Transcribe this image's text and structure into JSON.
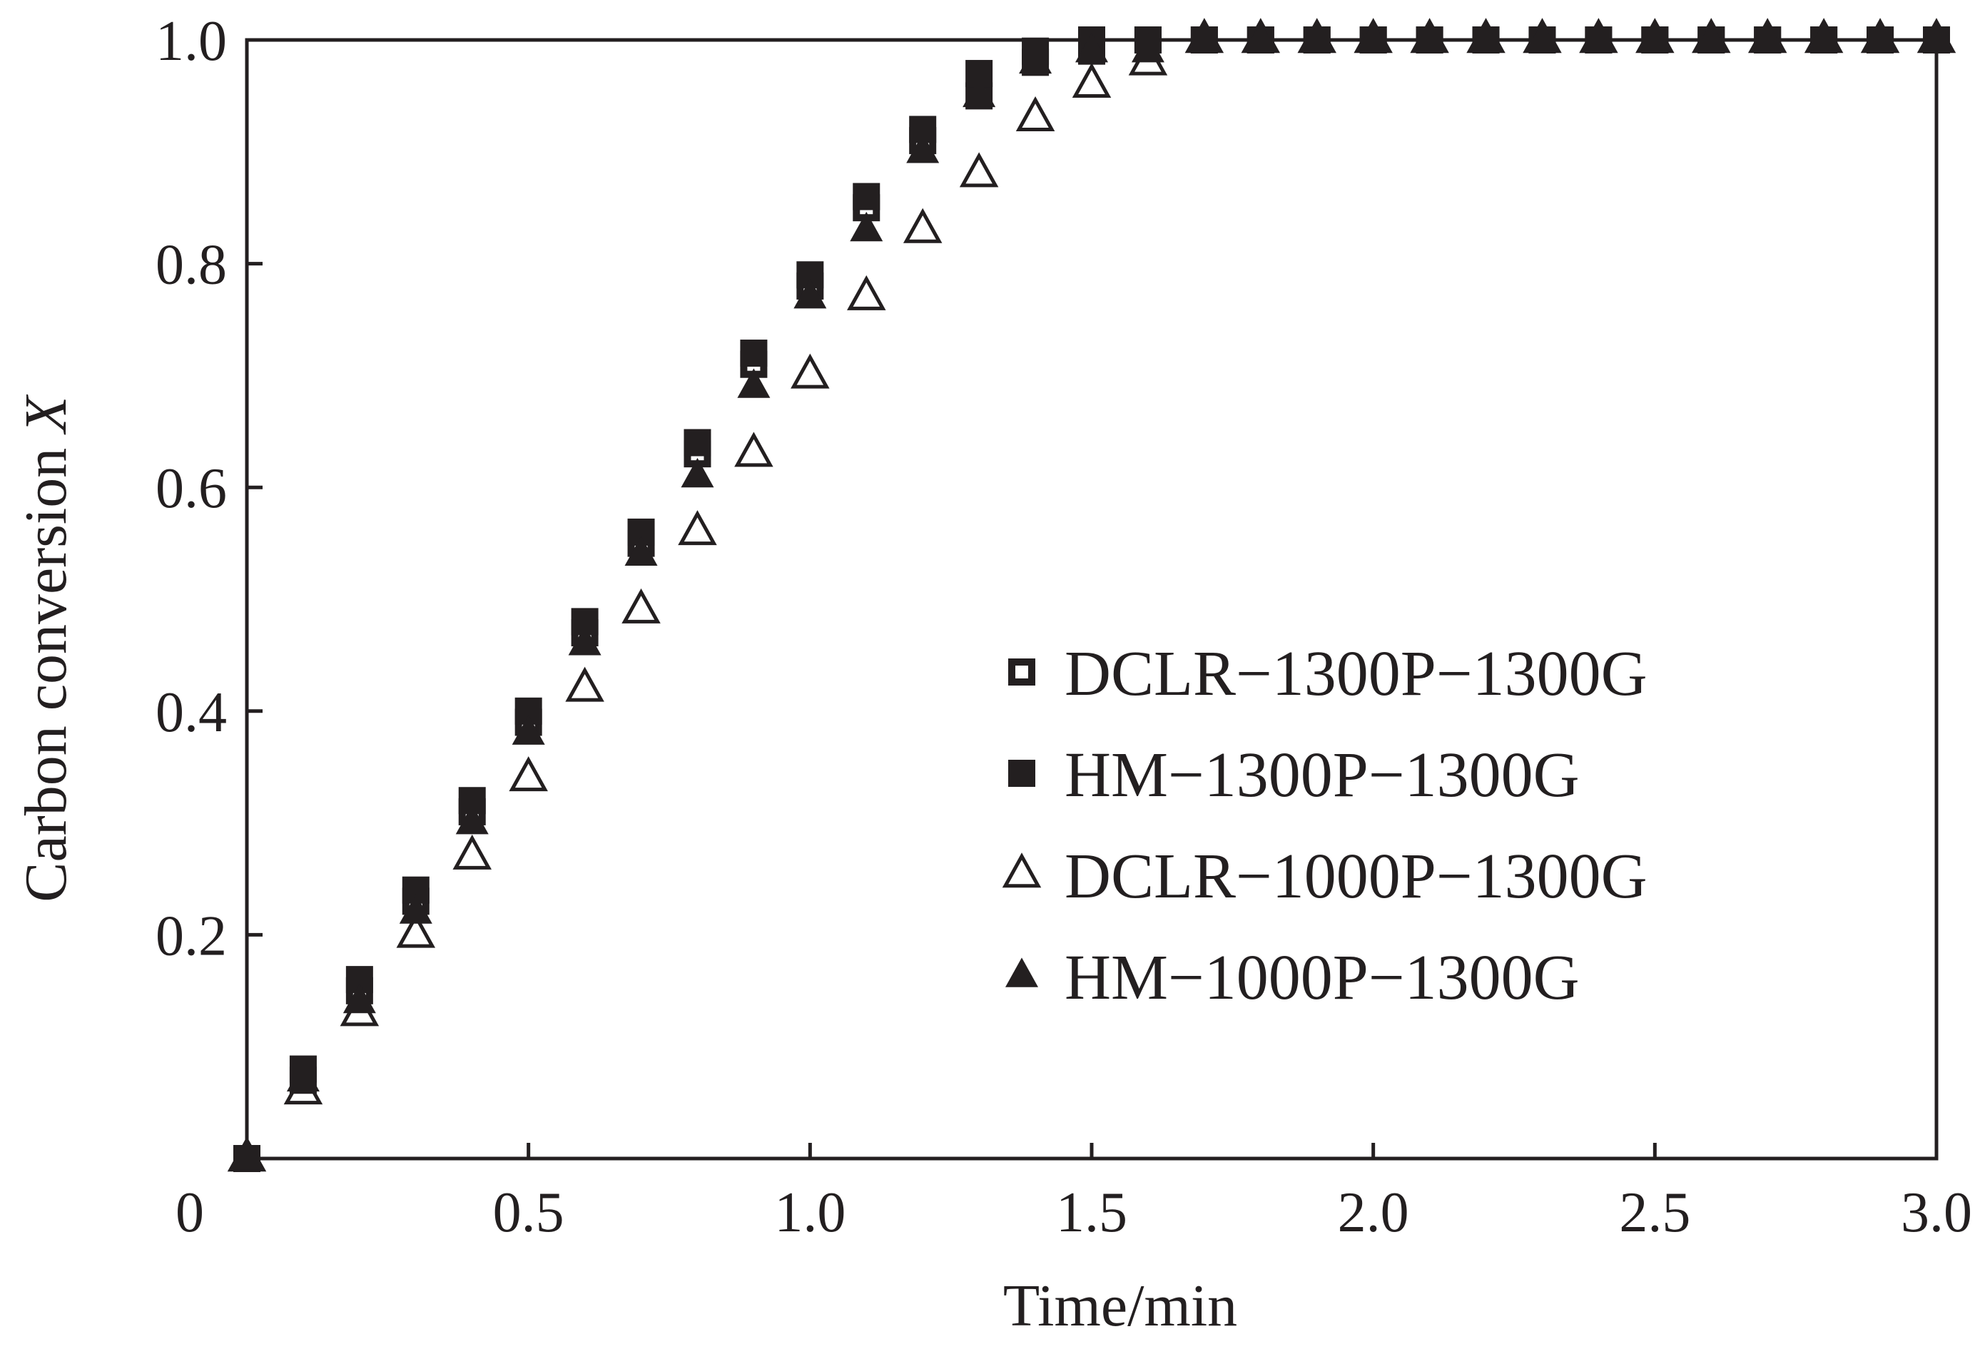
{
  "chart_data": {
    "type": "scatter",
    "title": "",
    "xlabel": "Time/min",
    "ylabel_main": "Carbon conversion ",
    "ylabel_var": "X",
    "xlim": [
      0,
      3.0
    ],
    "ylim": [
      0,
      1.0
    ],
    "x_ticks": [
      {
        "value": 0,
        "label": "0"
      },
      {
        "value": 0.5,
        "label": "0.5"
      },
      {
        "value": 1.0,
        "label": "1.0"
      },
      {
        "value": 1.5,
        "label": "1.5"
      },
      {
        "value": 2.0,
        "label": "2.0"
      },
      {
        "value": 2.5,
        "label": "2.5"
      },
      {
        "value": 3.0,
        "label": "3.0"
      }
    ],
    "y_ticks": [
      {
        "value": 0.2,
        "label": "0.2"
      },
      {
        "value": 0.4,
        "label": "0.4"
      },
      {
        "value": 0.6,
        "label": "0.6"
      },
      {
        "value": 0.8,
        "label": "0.8"
      },
      {
        "value": 1.0,
        "label": "1.0"
      }
    ],
    "grid": false,
    "legend_position": "center-right",
    "series": [
      {
        "name": "DCLR−1300P−1300G",
        "marker": "square-open",
        "color": "#231f20",
        "x": [
          0,
          0.1,
          0.2,
          0.3,
          0.4,
          0.5,
          0.6,
          0.7,
          0.8,
          0.9,
          1.0,
          1.1,
          1.2,
          1.3,
          1.4,
          1.5,
          1.6,
          1.7,
          1.8,
          1.9,
          2.0,
          2.1,
          2.2,
          2.3,
          2.4,
          2.5,
          2.6,
          2.7,
          2.8,
          2.9,
          3.0
        ],
        "y": [
          0,
          0.07,
          0.15,
          0.23,
          0.31,
          0.39,
          0.47,
          0.55,
          0.63,
          0.71,
          0.78,
          0.85,
          0.91,
          0.95,
          0.98,
          0.99,
          1.0,
          1.0,
          1.0,
          1.0,
          1.0,
          1.0,
          1.0,
          1.0,
          1.0,
          1.0,
          1.0,
          1.0,
          1.0,
          1.0,
          1.0
        ]
      },
      {
        "name": "HM−1300P−1300G",
        "marker": "square-filled",
        "color": "#231f20",
        "x": [
          0,
          0.1,
          0.2,
          0.3,
          0.4,
          0.5,
          0.6,
          0.7,
          0.8,
          0.9,
          1.0,
          1.1,
          1.2,
          1.3,
          1.4,
          1.5,
          1.6,
          1.7,
          1.8,
          1.9,
          2.0,
          2.1,
          2.2,
          2.3,
          2.4,
          2.5,
          2.6,
          2.7,
          2.8,
          2.9,
          3.0
        ],
        "y": [
          0,
          0.08,
          0.16,
          0.24,
          0.32,
          0.4,
          0.48,
          0.56,
          0.64,
          0.72,
          0.79,
          0.86,
          0.92,
          0.97,
          0.99,
          1.0,
          1.0,
          1.0,
          1.0,
          1.0,
          1.0,
          1.0,
          1.0,
          1.0,
          1.0,
          1.0,
          1.0,
          1.0,
          1.0,
          1.0,
          1.0
        ]
      },
      {
        "name": "DCLR−1000P−1300G",
        "marker": "triangle-open",
        "color": "#231f20",
        "x": [
          0,
          0.1,
          0.2,
          0.3,
          0.4,
          0.5,
          0.6,
          0.7,
          0.8,
          0.9,
          1.0,
          1.1,
          1.2,
          1.3,
          1.4,
          1.5,
          1.6,
          1.7,
          1.8,
          1.9,
          2.0,
          2.1,
          2.2,
          2.3,
          2.4,
          2.5,
          2.6,
          2.7,
          2.8,
          2.9,
          3.0
        ],
        "y": [
          0,
          0.06,
          0.13,
          0.2,
          0.27,
          0.34,
          0.42,
          0.49,
          0.56,
          0.63,
          0.7,
          0.77,
          0.83,
          0.88,
          0.93,
          0.96,
          0.98,
          1.0,
          1.0,
          1.0,
          1.0,
          1.0,
          1.0,
          1.0,
          1.0,
          1.0,
          1.0,
          1.0,
          1.0,
          1.0,
          1.0
        ]
      },
      {
        "name": "HM−1000P−1300G",
        "marker": "triangle-filled",
        "color": "#231f20",
        "x": [
          0,
          0.1,
          0.2,
          0.3,
          0.4,
          0.5,
          0.6,
          0.7,
          0.8,
          0.9,
          1.0,
          1.1,
          1.2,
          1.3,
          1.4,
          1.5,
          1.6,
          1.7,
          1.8,
          1.9,
          2.0,
          2.1,
          2.2,
          2.3,
          2.4,
          2.5,
          2.6,
          2.7,
          2.8,
          2.9,
          3.0
        ],
        "y": [
          0,
          0.07,
          0.14,
          0.22,
          0.3,
          0.38,
          0.46,
          0.54,
          0.61,
          0.69,
          0.77,
          0.83,
          0.9,
          0.95,
          0.98,
          0.99,
          0.99,
          1.0,
          1.0,
          1.0,
          1.0,
          1.0,
          1.0,
          1.0,
          1.0,
          1.0,
          1.0,
          1.0,
          1.0,
          1.0,
          1.0
        ]
      }
    ]
  }
}
